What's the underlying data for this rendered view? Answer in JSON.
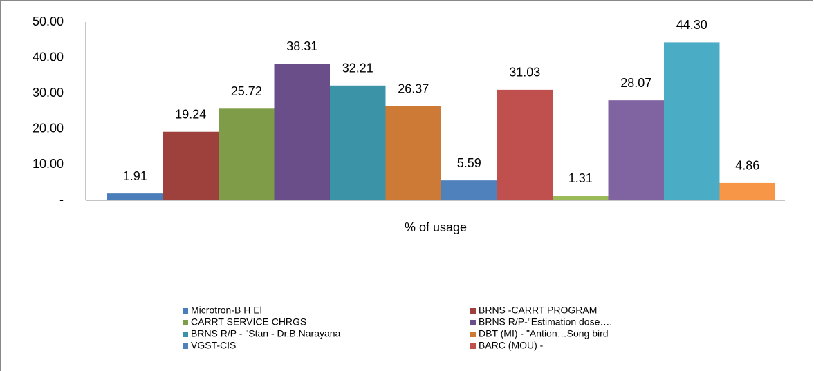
{
  "chart_data": {
    "type": "bar",
    "categories": [
      "% of usage"
    ],
    "ylim": [
      0,
      50
    ],
    "yticks": [
      {
        "value": 0,
        "label": "-"
      },
      {
        "value": 10,
        "label": "10.00"
      },
      {
        "value": 20,
        "label": "20.00"
      },
      {
        "value": 30,
        "label": "30.00"
      },
      {
        "value": 40,
        "label": "40.00"
      },
      {
        "value": 50,
        "label": "50.00"
      }
    ],
    "series": [
      {
        "name": "Microtron-B H El",
        "color": "#4a7ebb",
        "values": [
          1.91
        ]
      },
      {
        "name": "BRNS -CARRT PROGRAM",
        "color": "#9e403c",
        "values": [
          19.24
        ]
      },
      {
        "name": "CARRT SERVICE CHRGS",
        "color": "#7f9c48",
        "values": [
          25.72
        ]
      },
      {
        "name": "BRNS R/P-\"Estimation dose….",
        "color": "#6a4e8a",
        "values": [
          38.31
        ]
      },
      {
        "name": "BRNS R/P - \"Stan - Dr.B.Narayana",
        "color": "#3b93a8",
        "values": [
          32.21
        ]
      },
      {
        "name": "DBT (MI) - \"Antion…Song bird",
        "color": "#cc7a35",
        "values": [
          26.37
        ]
      },
      {
        "name": "VGST-CIS",
        "color": "#4f81bd",
        "values": [
          5.59
        ]
      },
      {
        "name": "BARC (MOU) -",
        "color": "#c0504d",
        "values": [
          31.03
        ]
      },
      {
        "name": null,
        "color": "#9bbb59",
        "values": [
          1.31
        ]
      },
      {
        "name": null,
        "color": "#8064a2",
        "values": [
          28.07
        ]
      },
      {
        "name": null,
        "color": "#4bacc6",
        "values": [
          44.3
        ],
        "value_labels": [
          "44.30"
        ]
      },
      {
        "name": null,
        "color": "#f79646",
        "values": [
          4.86
        ]
      }
    ]
  }
}
